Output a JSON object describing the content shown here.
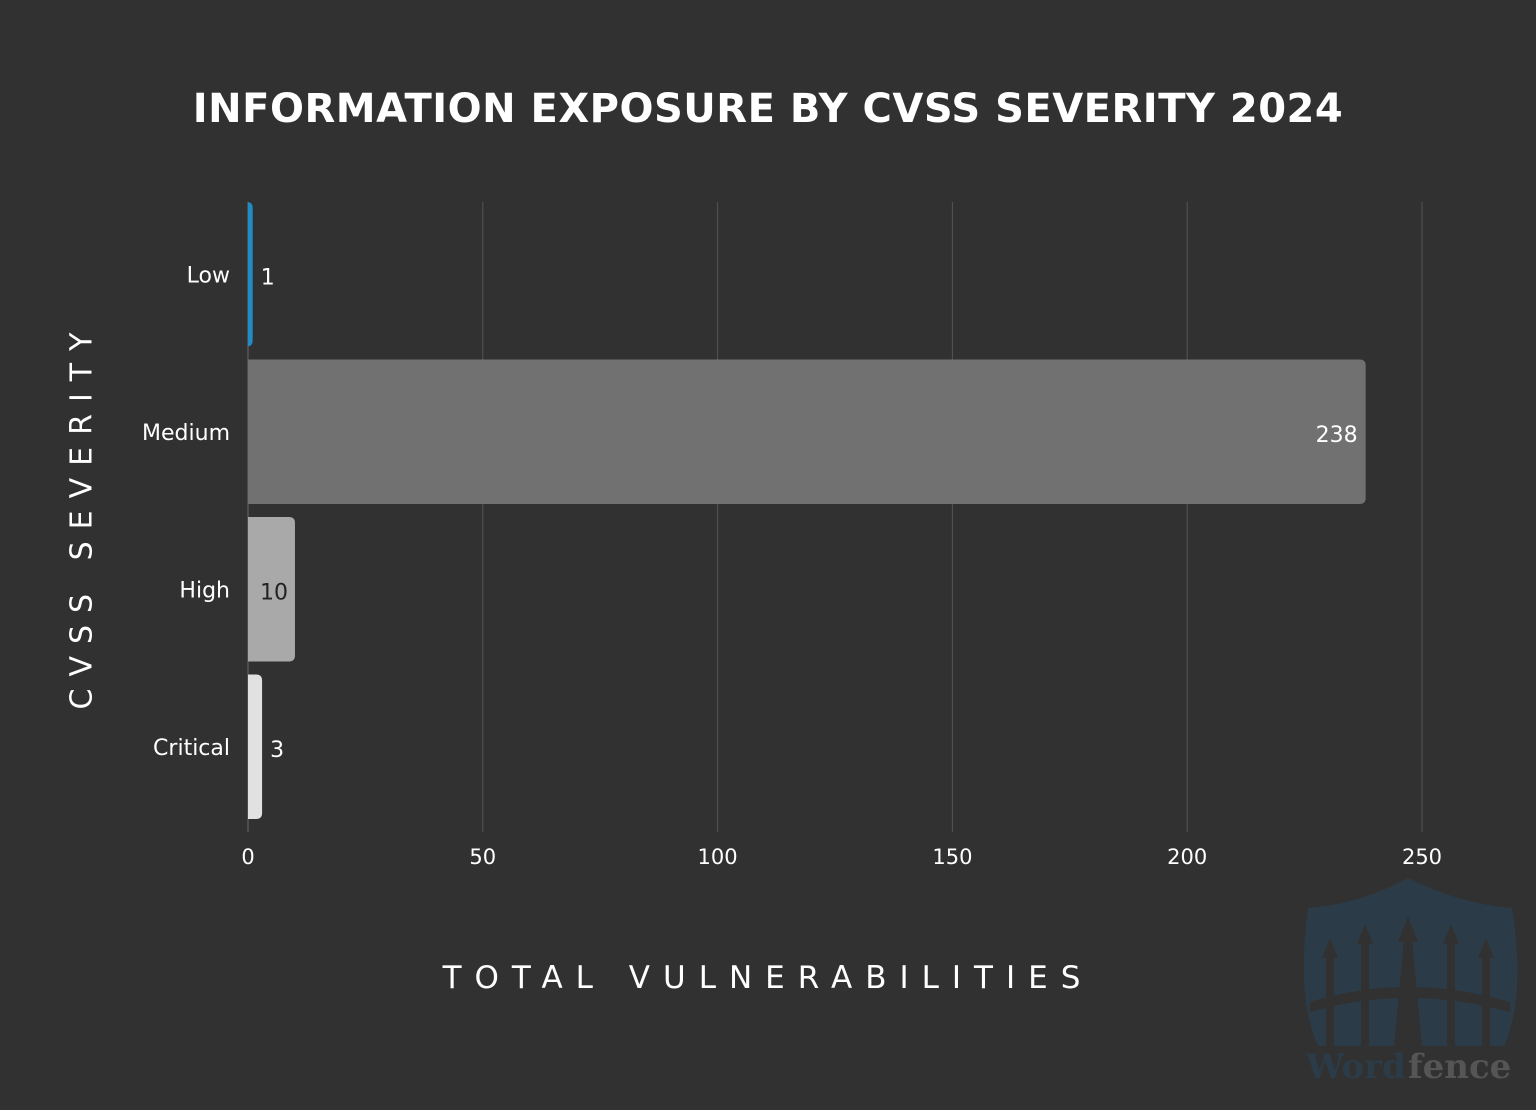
{
  "chart_data": {
    "type": "bar",
    "orientation": "horizontal",
    "title": "INFORMATION EXPOSURE BY CVSS SEVERITY 2024",
    "xlabel": "TOTAL VULNERABILITIES",
    "ylabel": "CVSS SEVERITY",
    "categories": [
      "Low",
      "Medium",
      "High",
      "Critical"
    ],
    "values": [
      1,
      238,
      10,
      3
    ],
    "colors": [
      "#1f8cc8",
      "#717171",
      "#a9a9a9",
      "#e1e1e1"
    ],
    "xlim": [
      0,
      250
    ],
    "xticks": [
      0,
      50,
      100,
      150,
      200,
      250
    ],
    "grid": true,
    "data_labels": true
  },
  "watermark": {
    "text": "Wordfence",
    "part1": "Word",
    "part2": "fence"
  }
}
